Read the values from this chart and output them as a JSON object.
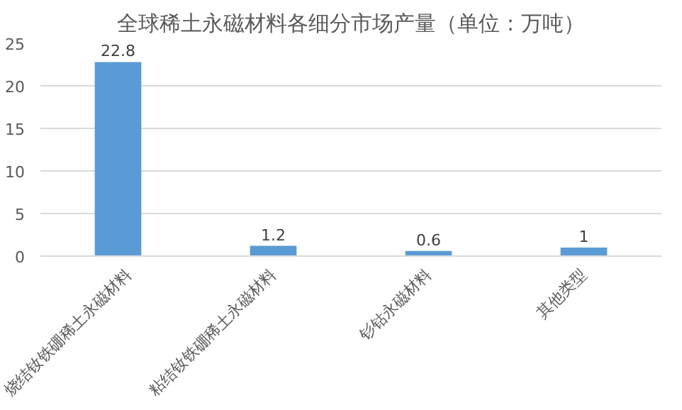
{
  "chart_data": {
    "type": "bar",
    "title": "全球稀土永磁材料各细分市场产量（单位：万吨）",
    "categories": [
      "烧结钕铁硼稀土永磁材料",
      "粘结钕铁硼稀土永磁材料",
      "钐钴永磁材料",
      "其他类型"
    ],
    "values": [
      22.8,
      1.2,
      0.6,
      1
    ],
    "color": "#5b9bd5",
    "ylim": [
      0,
      25
    ],
    "yticks": [
      0,
      5,
      10,
      15,
      20,
      25
    ],
    "grid": "y",
    "data_labels": true
  }
}
